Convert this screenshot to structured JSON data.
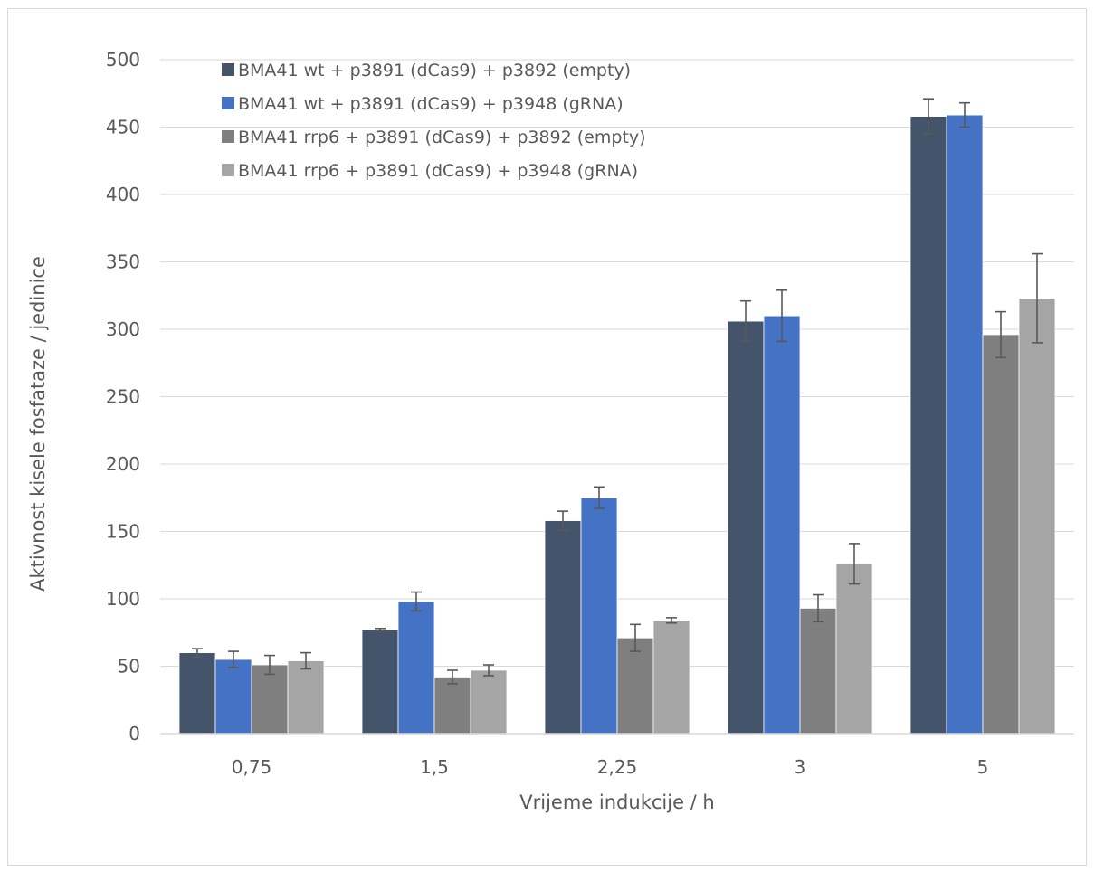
{
  "chart_data": {
    "type": "bar",
    "title": "",
    "xlabel": "Vrijeme indukcije / h",
    "ylabel": "Aktivnost kisele fosfataze / jedinice",
    "categories": [
      "0,75",
      "1,5",
      "2,25",
      "3",
      "5"
    ],
    "ylim": [
      0,
      500
    ],
    "yticks": [
      0,
      50,
      100,
      150,
      200,
      250,
      300,
      350,
      400,
      450,
      500
    ],
    "grid": true,
    "legend_position": "top-left",
    "series": [
      {
        "name": "BMA41 wt + p3891 (dCas9) + p3892 (empty)",
        "color": "#44546a",
        "values": [
          60,
          77,
          158,
          306,
          458
        ],
        "errors": [
          3,
          1,
          7,
          15,
          13
        ]
      },
      {
        "name": "BMA41 wt + p3891 (dCas9) + p3948 (gRNA)",
        "color": "#4472c4",
        "values": [
          55,
          98,
          175,
          310,
          459
        ],
        "errors": [
          6,
          7,
          8,
          19,
          9
        ]
      },
      {
        "name": "BMA41 rrp6 + p3891 (dCas9) + p3892 (empty)",
        "color": "#7f7f7f",
        "values": [
          51,
          42,
          71,
          93,
          296
        ],
        "errors": [
          7,
          5,
          10,
          10,
          17
        ]
      },
      {
        "name": "BMA41 rrp6 + p3891 (dCas9) + p3948 (gRNA)",
        "color": "#a5a5a5",
        "values": [
          54,
          47,
          84,
          126,
          323
        ],
        "errors": [
          6,
          4,
          2,
          15,
          33
        ]
      }
    ]
  }
}
